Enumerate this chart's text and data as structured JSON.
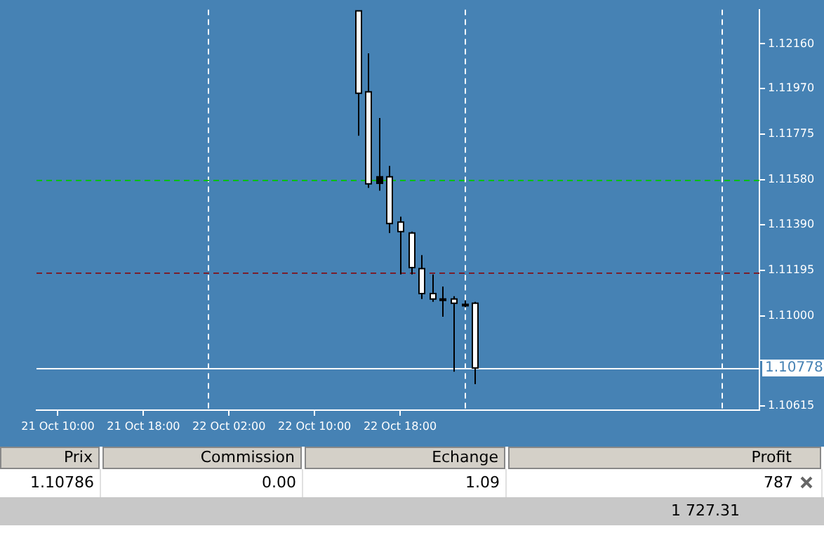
{
  "chart_data": {
    "type": "candlestick",
    "x": [
      "--10-22T14:00",
      "--10-22T15:00",
      "--10-22T16:00",
      "--10-22T17:00",
      "--10-22T18:00",
      "--10-22T19:00",
      "--10-22T20:00",
      "--10-22T21:00",
      "--10-22T22:00",
      "--10-22T23:00",
      "--10-23T00:00",
      "--10-23T01:00"
    ],
    "ohlc": [
      [
        1.123,
        1.123,
        1.11768,
        1.11949
      ],
      [
        1.11955,
        1.12119,
        1.11546,
        1.11563
      ],
      [
        1.11565,
        1.11844,
        1.11534,
        1.11593
      ],
      [
        1.11593,
        1.11639,
        1.11353,
        1.11394
      ],
      [
        1.114,
        1.11423,
        1.11177,
        1.11359
      ],
      [
        1.11353,
        1.11359,
        1.11177,
        1.11206
      ],
      [
        1.11201,
        1.11259,
        1.11072,
        1.11095
      ],
      [
        1.11095,
        1.11177,
        1.1106,
        1.11072
      ],
      [
        1.11072,
        1.11125,
        1.10996,
        1.11072
      ],
      [
        1.11072,
        1.11084,
        1.10762,
        1.11054
      ],
      [
        1.11049,
        1.11066,
        1.11037,
        1.11049
      ],
      [
        1.11054,
        1.1106,
        1.10709,
        1.10778
      ]
    ],
    "colors": [
      "#ffffff",
      "#ffffff",
      "#000000",
      "#ffffff",
      "#ffffff",
      "#ffffff",
      "#ffffff",
      "#ffffff",
      "#ffffff",
      "#ffffff",
      "#ffffff",
      "#ffffff"
    ],
    "xlim": [
      "--10-21T08:00",
      "--10-24T03:36"
    ],
    "xticks": [
      {
        "value": "--10-21T10:00",
        "label": "21 Oct 10:00"
      },
      {
        "value": "--10-21T18:00",
        "label": "21 Oct 18:00"
      },
      {
        "value": "--10-22T02:00",
        "label": "22 Oct 02:00"
      },
      {
        "value": "--10-22T10:00",
        "label": "22 Oct 10:00"
      },
      {
        "value": "--10-22T18:00",
        "label": "22 Oct 18:00"
      }
    ],
    "ylim": [
      1.10598,
      1.12306
    ],
    "yticks": [
      {
        "value": 1.1216,
        "label": "1.12160"
      },
      {
        "value": 1.1197,
        "label": "1.11970"
      },
      {
        "value": 1.11775,
        "label": "1.11775"
      },
      {
        "value": 1.1158,
        "label": "1.11580"
      },
      {
        "value": 1.1139,
        "label": "1.11390"
      },
      {
        "value": 1.11195,
        "label": "1.11195"
      },
      {
        "value": 1.11,
        "label": "1.11000"
      },
      {
        "value": 1.1081,
        "label": null
      },
      {
        "value": 1.10615,
        "label": "1.10615"
      }
    ],
    "ref_lines": [
      {
        "axis": "x",
        "value": "--10-22T00:00",
        "color": "#ffffff",
        "line_style": "dashed"
      },
      {
        "axis": "x",
        "value": "--10-23T00:00",
        "color": "#ffffff",
        "line_style": "dashed"
      },
      {
        "axis": "x",
        "value": "--10-24T00:00",
        "color": "#ffffff",
        "line_style": "dashed"
      },
      {
        "axis": "y",
        "value": 1.1158,
        "color": "#00c000",
        "line_style": "dashed"
      },
      {
        "axis": "y",
        "value": 1.11183,
        "color": "#7a1f2b",
        "line_style": "dashed"
      },
      {
        "axis": "y",
        "value": 1.10778,
        "color": "#ffffff",
        "line_style": "solid",
        "label": "1.10778"
      }
    ],
    "annotations": [
      "Prix",
      "Commission",
      "Echange",
      "Profit",
      "1.10786",
      "0.00",
      "1.09",
      "787",
      "1 727.31"
    ]
  }
}
